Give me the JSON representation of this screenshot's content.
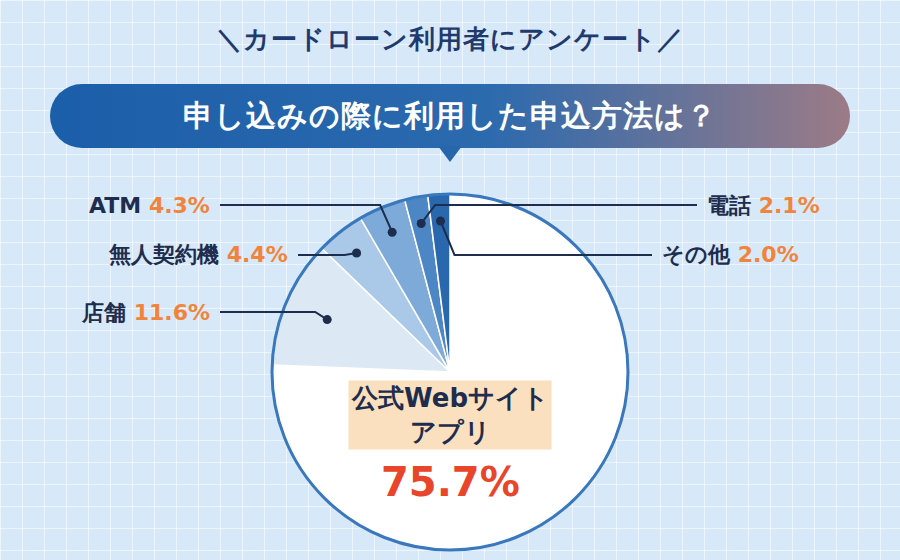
{
  "chart_data": {
    "type": "pie",
    "subtitle": "＼カードローン利用者にアンケート／",
    "title": "申し込みの際に利用した申込方法は？",
    "categories": [
      "公式Webサイト\nアプリ",
      "店舗",
      "無人契約機",
      "ATM",
      "電話",
      "その他"
    ],
    "values": [
      75.7,
      11.6,
      4.4,
      4.3,
      2.1,
      2.0
    ],
    "value_labels": [
      "75.7%",
      "11.6%",
      "4.4%",
      "4.3%",
      "2.1%",
      "2.0%"
    ],
    "colors": [
      "#ffffff",
      "#dce9f5",
      "#aac9e9",
      "#7eaad9",
      "#4d86c5",
      "#2a68ae"
    ],
    "data_labels": true
  }
}
